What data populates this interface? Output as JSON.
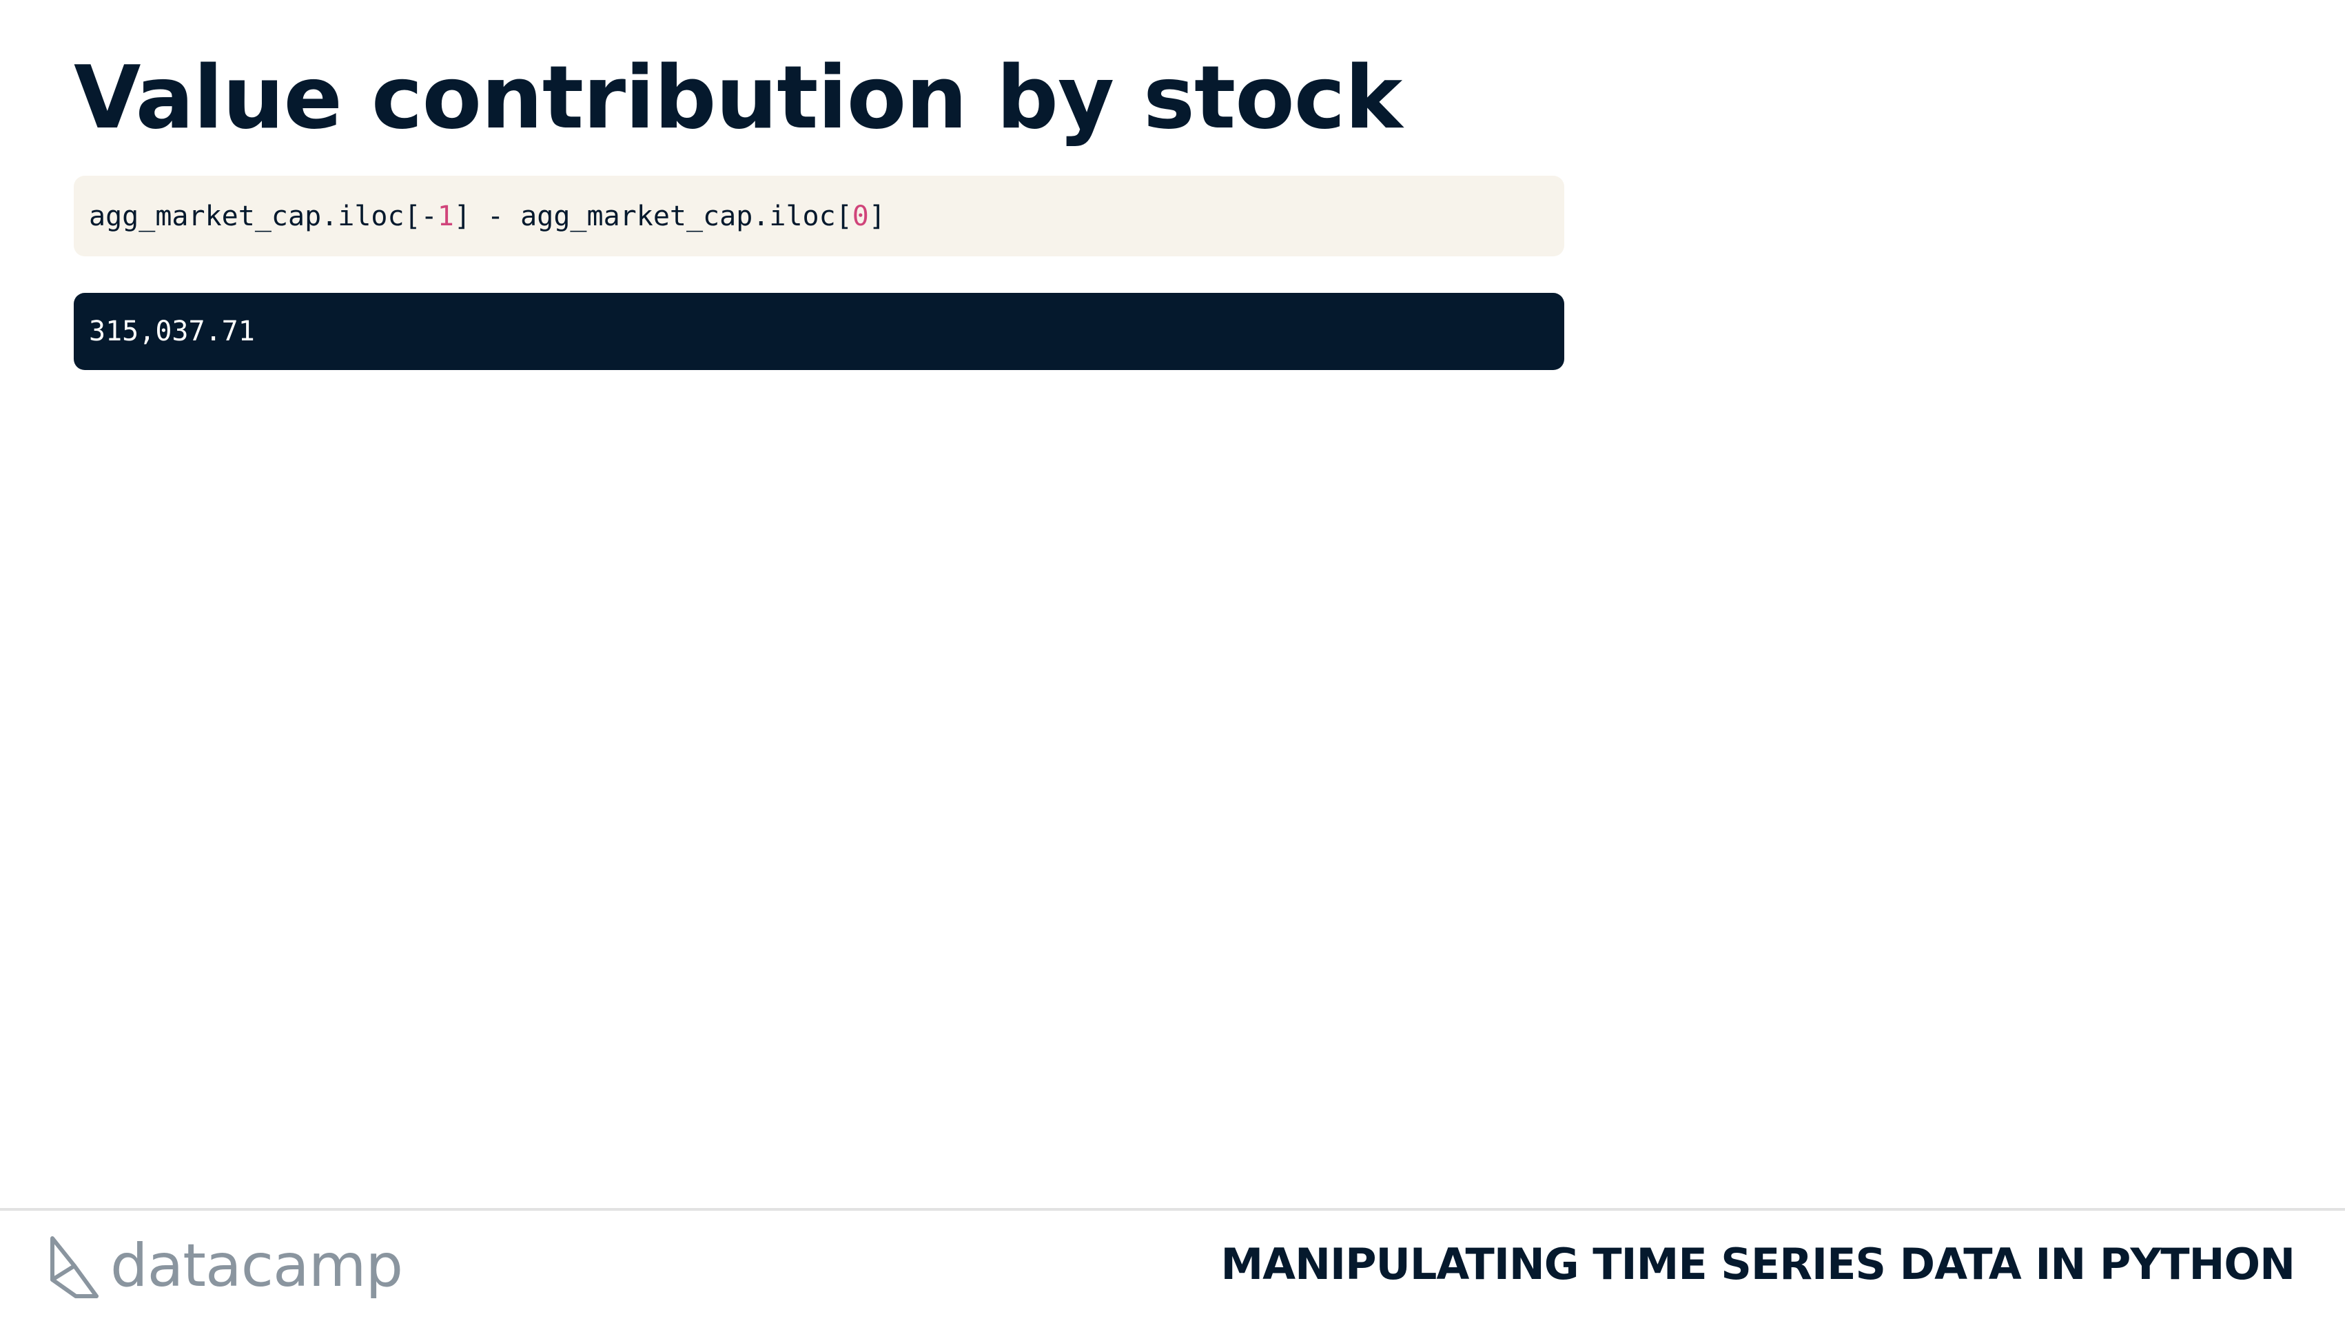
{
  "slide": {
    "title": "Value contribution by stock"
  },
  "code": {
    "part1": "agg_market_cap.iloc[-",
    "num1": "1",
    "part2": "] - agg_market_cap.iloc[",
    "num2": "0",
    "part3": "]"
  },
  "output": {
    "text": "315,037.71"
  },
  "footer": {
    "logo_text": "datacamp",
    "course_title": "MANIPULATING TIME SERIES DATA IN PYTHON"
  },
  "colors": {
    "navy": "#05192d",
    "code_background": "#f7f3eb",
    "number_highlight": "#d0447a",
    "logo_gray": "#8a959f"
  },
  "icons": {
    "logo": "datacamp-logo-icon"
  }
}
